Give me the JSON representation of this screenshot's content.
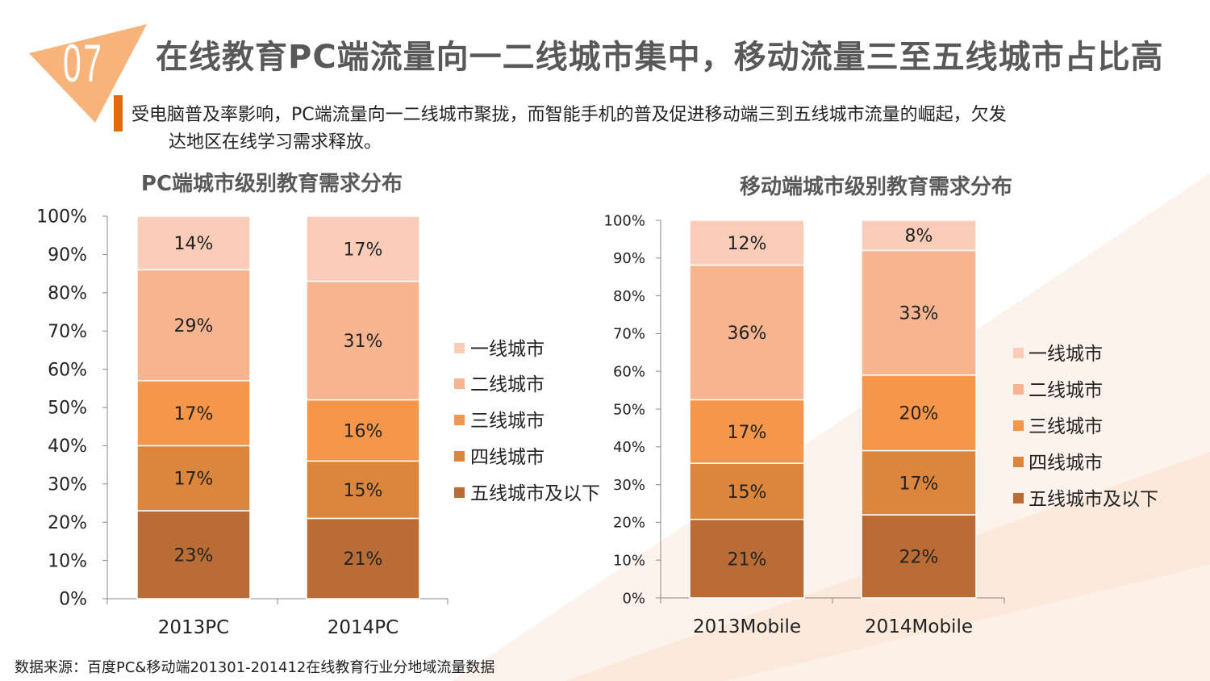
{
  "slide": {
    "number": "07",
    "title": "在线教育PC端流量向一二线城市集中，移动流量三至五线城市占比高",
    "subtitle_line1": "受电脑普及率影响，PC端流量向一二线城市聚拢，而智能手机的普及促进移动端三到五线城市流量的崛起，欠发",
    "subtitle_line2": "达地区在线学习需求释放。",
    "source": "数据来源：百度PC&移动端201301-201412在线教育行业分地域流量数据",
    "accent_color": "#E36C0A"
  },
  "chart_data": [
    {
      "type": "bar",
      "stacked": true,
      "title": "PC端城市级别教育需求分布",
      "categories": [
        "2013PC",
        "2014PC"
      ],
      "ylim": [
        0,
        100
      ],
      "yticks": [
        "0%",
        "10%",
        "20%",
        "30%",
        "40%",
        "50%",
        "60%",
        "70%",
        "80%",
        "90%",
        "100%"
      ],
      "legend_position": "right",
      "grid": false,
      "series": [
        {
          "name": "五线城市及以下",
          "color": "#B96C35",
          "values": [
            23,
            21
          ]
        },
        {
          "name": "四线城市",
          "color": "#DC853D",
          "values": [
            17,
            15
          ]
        },
        {
          "name": "三线城市",
          "color": "#F5964A",
          "values": [
            17,
            16
          ]
        },
        {
          "name": "二线城市",
          "color": "#F6B590",
          "values": [
            29,
            31
          ]
        },
        {
          "name": "一线城市",
          "color": "#F9CDB7",
          "values": [
            14,
            17
          ]
        }
      ]
    },
    {
      "type": "bar",
      "stacked": true,
      "title": "移动端城市级别教育需求分布",
      "categories": [
        "2013Mobile",
        "2014Mobile"
      ],
      "ylim": [
        0,
        100
      ],
      "yticks": [
        "0%",
        "10%",
        "20%",
        "30%",
        "40%",
        "50%",
        "60%",
        "70%",
        "80%",
        "90%",
        "100%"
      ],
      "legend_position": "right",
      "grid": false,
      "series": [
        {
          "name": "五线城市及以下",
          "color": "#B96C35",
          "values": [
            21,
            22
          ]
        },
        {
          "name": "四线城市",
          "color": "#DC853D",
          "values": [
            15,
            17
          ]
        },
        {
          "name": "三线城市",
          "color": "#F5964A",
          "values": [
            17,
            20
          ]
        },
        {
          "name": "二线城市",
          "color": "#F6B590",
          "values": [
            36,
            33
          ]
        },
        {
          "name": "一线城市",
          "color": "#F9CDB7",
          "values": [
            12,
            8
          ]
        }
      ]
    }
  ]
}
